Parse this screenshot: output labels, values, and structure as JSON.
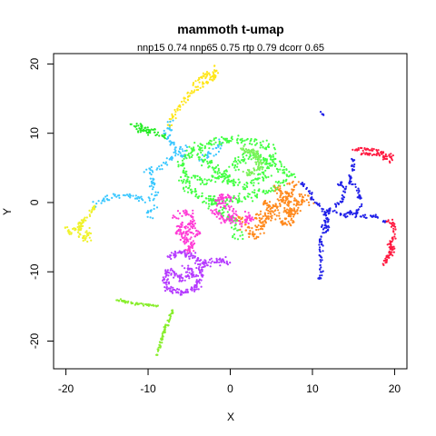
{
  "chart_data": {
    "type": "scatter",
    "title": "mammoth t-umap",
    "subtitle": "nnp15 0.74 nnp65 0.75 rtp 0.79 dcorr 0.65",
    "xlabel": "X",
    "ylabel": "Y",
    "xlim": [
      -21.5,
      21.5
    ],
    "ylim": [
      -24,
      21.5
    ],
    "xticks": [
      -20,
      -10,
      0,
      10,
      20
    ],
    "yticks": [
      -20,
      -10,
      0,
      10,
      20
    ],
    "grid": false,
    "legend": "none",
    "series": [
      {
        "color": "#ffe619",
        "paths": [
          [
            [
              -1.5,
              19
            ],
            [
              -2.5,
              17.5
            ],
            [
              -4,
              16.5
            ],
            [
              -5,
              15.5
            ],
            [
              -6,
              14
            ],
            [
              -7,
              12.5
            ],
            [
              -7.5,
              11
            ]
          ],
          [
            [
              -2,
              19.5
            ],
            [
              -1.8,
              18
            ],
            [
              -3,
              18.5
            ],
            [
              -4.5,
              17
            ]
          ]
        ],
        "spread": 0.5,
        "n": 120
      },
      {
        "color": "#39c7ff",
        "paths": [
          [
            [
              -7,
              12
            ],
            [
              -7.5,
              10.5
            ],
            [
              -8,
              9.5
            ],
            [
              -6.5,
              8
            ],
            [
              -5.5,
              6.5
            ]
          ],
          [
            [
              -5,
              8
            ],
            [
              -7,
              6.5
            ],
            [
              -8.5,
              5
            ],
            [
              -10,
              4.5
            ],
            [
              -9.5,
              3
            ],
            [
              -9,
              1.5
            ],
            [
              -10,
              0.5
            ],
            [
              -11.5,
              0.5
            ]
          ],
          [
            [
              -11.5,
              1
            ],
            [
              -13.5,
              1
            ],
            [
              -15.5,
              0.5
            ],
            [
              -16.5,
              -0.5
            ]
          ],
          [
            [
              -9,
              -0.5
            ],
            [
              -10,
              -1.5
            ],
            [
              -9.5,
              -2
            ]
          ],
          [
            [
              -4,
              6
            ],
            [
              -2.5,
              7
            ],
            [
              -1,
              8.5
            ]
          ]
        ],
        "spread": 0.7,
        "n": 200
      },
      {
        "color": "#26eb26",
        "paths": [
          [
            [
              -12,
              11.5
            ],
            [
              -10,
              10.5
            ],
            [
              -9,
              10
            ],
            [
              -8,
              9.5
            ]
          ],
          [
            [
              -11.5,
              10.5
            ],
            [
              -10,
              10
            ]
          ]
        ],
        "spread": 0.6,
        "n": 60
      },
      {
        "color": "#44ff44",
        "paths": [
          [
            [
              -6,
              6
            ],
            [
              -4,
              8
            ],
            [
              -1,
              9
            ],
            [
              2,
              9
            ],
            [
              4,
              8.5
            ],
            [
              5,
              7.5
            ]
          ],
          [
            [
              -6,
              6
            ],
            [
              -5.5,
              3
            ],
            [
              -4,
              1
            ],
            [
              -2,
              0
            ],
            [
              1,
              0.5
            ],
            [
              3,
              1
            ],
            [
              5,
              2
            ],
            [
              6.5,
              3
            ]
          ],
          [
            [
              -4,
              7
            ],
            [
              -2,
              5
            ],
            [
              0,
              3
            ],
            [
              2,
              2.5
            ],
            [
              4,
              4
            ],
            [
              5,
              6
            ]
          ],
          [
            [
              -5,
              4
            ],
            [
              -3,
              3
            ],
            [
              -1,
              4
            ],
            [
              1,
              6
            ],
            [
              3,
              7
            ],
            [
              5,
              5.5
            ]
          ],
          [
            [
              -3,
              1
            ],
            [
              -1,
              -1
            ],
            [
              0,
              -2
            ],
            [
              1,
              -4
            ],
            [
              1,
              -5
            ]
          ],
          [
            [
              5,
              7
            ],
            [
              6,
              5
            ],
            [
              7,
              4
            ],
            [
              8,
              4
            ]
          ]
        ],
        "spread": 1.0,
        "n": 650
      },
      {
        "color": "#7cf25a",
        "paths": [
          [
            [
              1,
              7.5
            ],
            [
              3,
              7.5
            ],
            [
              3.5,
              5
            ],
            [
              2,
              4
            ]
          ]
        ],
        "spread": 0.8,
        "n": 100
      },
      {
        "color": "#ff8a1f",
        "paths": [
          [
            [
              1,
              -2
            ],
            [
              2,
              -4
            ],
            [
              3,
              -5
            ],
            [
              4,
              -3
            ],
            [
              5,
              -1
            ],
            [
              6,
              0
            ],
            [
              7,
              1
            ],
            [
              7.5,
              2.5
            ],
            [
              8,
              3
            ]
          ],
          [
            [
              3,
              -2
            ],
            [
              5,
              -2
            ],
            [
              7,
              -3
            ],
            [
              8,
              -1
            ],
            [
              9,
              1
            ],
            [
              9.5,
              0
            ]
          ],
          [
            [
              4,
              0
            ],
            [
              6,
              -1
            ],
            [
              7.5,
              -2
            ],
            [
              6,
              2
            ],
            [
              8,
              0
            ]
          ]
        ],
        "spread": 0.9,
        "n": 350
      },
      {
        "color": "#b53bff",
        "paths": [
          [
            [
              -7.5,
              -8
            ],
            [
              -6,
              -7
            ],
            [
              -4,
              -8
            ],
            [
              -3.5,
              -10
            ],
            [
              -4,
              -12
            ],
            [
              -5.5,
              -13
            ],
            [
              -7.5,
              -12.5
            ],
            [
              -8,
              -11
            ],
            [
              -7.5,
              -9.5
            ]
          ],
          [
            [
              -5.5,
              -9
            ],
            [
              -4.5,
              -10.5
            ],
            [
              -6,
              -11
            ],
            [
              -7,
              -10
            ]
          ],
          [
            [
              -3.5,
              -9
            ],
            [
              -2,
              -8.5
            ],
            [
              0,
              -8.5
            ]
          ]
        ],
        "spread": 0.7,
        "n": 300
      },
      {
        "color": "#ff3bd6",
        "paths": [
          [
            [
              -7,
              -2
            ],
            [
              -5,
              -1.5
            ],
            [
              -4.5,
              -3.5
            ],
            [
              -5.5,
              -5
            ],
            [
              -5,
              -7
            ],
            [
              -4,
              -4
            ]
          ],
          [
            [
              -5,
              -3
            ],
            [
              -6.5,
              -3.5
            ],
            [
              -6,
              -5
            ]
          ],
          [
            [
              -2,
              -1
            ],
            [
              -1,
              -2.5
            ],
            [
              0.5,
              -2.5
            ],
            [
              0,
              -1
            ],
            [
              -1.5,
              0
            ],
            [
              -1,
              1
            ],
            [
              0.5,
              0.5
            ]
          ],
          [
            [
              1,
              -3
            ],
            [
              2.5,
              -2.5
            ],
            [
              2,
              -1.5
            ]
          ]
        ],
        "spread": 0.7,
        "n": 300
      },
      {
        "color": "#f0f22a",
        "paths": [
          [
            [
              -16.5,
              -0.5
            ],
            [
              -17.5,
              -2
            ],
            [
              -18.5,
              -3.5
            ],
            [
              -19.5,
              -4.5
            ],
            [
              -20,
              -3.5
            ]
          ],
          [
            [
              -18,
              -2.5
            ],
            [
              -18.5,
              -4.5
            ],
            [
              -17.5,
              -5.5
            ],
            [
              -17,
              -3.5
            ]
          ]
        ],
        "spread": 0.5,
        "n": 100
      },
      {
        "color": "#8aee2f",
        "paths": [
          [
            [
              -14,
              -14
            ],
            [
              -12,
              -14.5
            ],
            [
              -10,
              -14.8
            ],
            [
              -8.5,
              -15
            ]
          ],
          [
            [
              -7,
              -15.5
            ],
            [
              -7.5,
              -17
            ],
            [
              -8,
              -18.5
            ],
            [
              -8.5,
              -20.5
            ],
            [
              -9,
              -22
            ]
          ]
        ],
        "spread": 0.25,
        "n": 120
      },
      {
        "color": "#2020e8",
        "paths": [
          [
            [
              8.5,
              3
            ],
            [
              9.5,
              2
            ],
            [
              10,
              0.5
            ],
            [
              11,
              -0.5
            ],
            [
              11.5,
              -1.5
            ],
            [
              12,
              -1
            ],
            [
              11.5,
              -3
            ],
            [
              11,
              -5
            ],
            [
              11,
              -8
            ],
            [
              11,
              -11
            ]
          ],
          [
            [
              12,
              -1
            ],
            [
              13,
              -1.5
            ],
            [
              14,
              -2
            ],
            [
              14.5,
              -1.5
            ],
            [
              15.5,
              -1.5
            ],
            [
              16,
              0
            ],
            [
              15.5,
              2
            ],
            [
              14.5,
              3
            ],
            [
              15,
              5
            ],
            [
              15,
              6.5
            ]
          ],
          [
            [
              13,
              2
            ],
            [
              13.5,
              3
            ],
            [
              14,
              2
            ],
            [
              13.5,
              0
            ],
            [
              12.5,
              -0.5
            ]
          ],
          [
            [
              14.5,
              -1.5
            ],
            [
              16,
              -2
            ],
            [
              17.5,
              -2
            ],
            [
              18.5,
              -2.5
            ],
            [
              19,
              -3
            ]
          ],
          [
            [
              11.5,
              -4.5
            ],
            [
              12,
              -3
            ],
            [
              11.5,
              -2
            ]
          ],
          [
            [
              11,
              13
            ],
            [
              11.3,
              12.7
            ],
            [
              11.5,
              12.5
            ]
          ]
        ],
        "spread": 0.4,
        "n": 280
      },
      {
        "color": "#ff1a40",
        "paths": [
          [
            [
              15,
              7.5
            ],
            [
              16,
              7.8
            ],
            [
              17.5,
              7.5
            ],
            [
              19,
              7
            ],
            [
              20,
              6.5
            ]
          ],
          [
            [
              19,
              -2.5
            ],
            [
              19.8,
              -3
            ],
            [
              20,
              -4.5
            ],
            [
              19.5,
              -6
            ],
            [
              19.5,
              -7.5
            ],
            [
              18.8,
              -8.5
            ],
            [
              18.5,
              -9
            ]
          ],
          [
            [
              19.5,
              -6
            ],
            [
              20,
              -6.5
            ],
            [
              19,
              -8
            ]
          ],
          [
            [
              16,
              7
            ],
            [
              18,
              7
            ],
            [
              19.5,
              6
            ]
          ]
        ],
        "spread": 0.4,
        "n": 160
      }
    ]
  }
}
